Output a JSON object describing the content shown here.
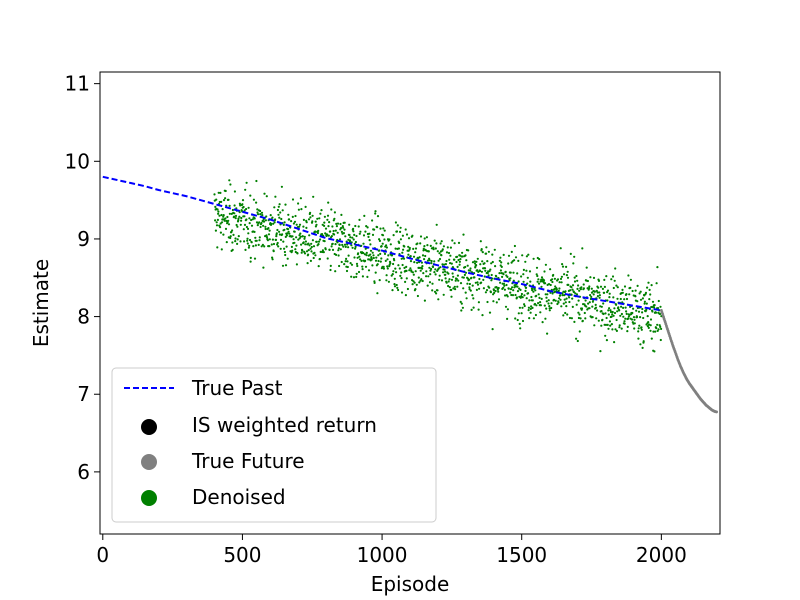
{
  "chart_data": {
    "type": "scatter",
    "title": "",
    "xlabel": "Episode",
    "ylabel": "Estimate",
    "xlim": [
      -10,
      2210
    ],
    "ylim": [
      5.2,
      11.15
    ],
    "xticks": [
      0,
      500,
      1000,
      1500,
      2000
    ],
    "yticks": [
      6,
      7,
      8,
      9,
      10,
      11
    ],
    "grid": false,
    "legend_position": "lower-left",
    "legend": [
      {
        "label": "True Past",
        "kind": "dashed-line",
        "color": "#0000ff"
      },
      {
        "label": "IS weighted return",
        "kind": "dot",
        "color": "#000000"
      },
      {
        "label": "True Future",
        "kind": "dot",
        "color": "#808080"
      },
      {
        "label": "Denoised",
        "kind": "dot",
        "color": "#008000"
      }
    ],
    "series": [
      {
        "name": "True Past",
        "style": "dashed-line",
        "color": "#0000ff",
        "x": [
          0,
          100,
          150,
          200,
          300,
          400,
          500,
          600,
          700,
          800,
          900,
          1000,
          1100,
          1200,
          1300,
          1400,
          1500,
          1600,
          1700,
          1800,
          1900,
          2000
        ],
        "y": [
          9.8,
          9.72,
          9.68,
          9.63,
          9.55,
          9.45,
          9.35,
          9.25,
          9.13,
          9.01,
          8.93,
          8.85,
          8.75,
          8.66,
          8.57,
          8.49,
          8.42,
          8.33,
          8.26,
          8.2,
          8.14,
          8.08
        ]
      },
      {
        "name": "True Future",
        "style": "dots",
        "color": "#808080",
        "x": [
          2000,
          2010,
          2020,
          2030,
          2040,
          2050,
          2060,
          2070,
          2080,
          2090,
          2100,
          2110,
          2120,
          2130,
          2140,
          2150,
          2160,
          2170,
          2180,
          2190,
          2200
        ],
        "y": [
          8.08,
          7.97,
          7.86,
          7.75,
          7.64,
          7.54,
          7.44,
          7.35,
          7.27,
          7.2,
          7.14,
          7.09,
          7.04,
          6.99,
          6.94,
          6.9,
          6.86,
          6.83,
          6.8,
          6.78,
          6.77
        ]
      },
      {
        "name": "Denoised",
        "style": "dots",
        "color": "#008000",
        "x_range": [
          400,
          2000
        ],
        "trend_start": 9.3,
        "trend_end": 8.0,
        "spread": 0.32,
        "count": 1600
      }
    ]
  }
}
